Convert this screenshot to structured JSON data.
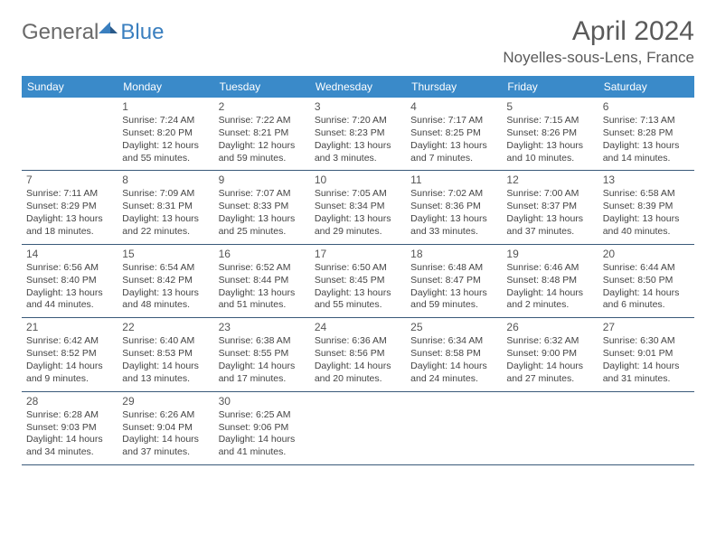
{
  "logo": {
    "text1": "General",
    "text2": "Blue"
  },
  "title": "April 2024",
  "location": "Noyelles-sous-Lens, France",
  "colors": {
    "header_bg": "#3a8ac9",
    "header_text": "#ffffff",
    "row_border": "#3a5a7a",
    "text": "#444444",
    "title": "#5a5a5a",
    "logo_gray": "#6a6a6a",
    "logo_blue": "#3a7fbf"
  },
  "weekdays": [
    "Sunday",
    "Monday",
    "Tuesday",
    "Wednesday",
    "Thursday",
    "Friday",
    "Saturday"
  ],
  "weeks": [
    [
      null,
      {
        "n": "1",
        "sr": "7:24 AM",
        "ss": "8:20 PM",
        "dl": "12 hours and 55 minutes."
      },
      {
        "n": "2",
        "sr": "7:22 AM",
        "ss": "8:21 PM",
        "dl": "12 hours and 59 minutes."
      },
      {
        "n": "3",
        "sr": "7:20 AM",
        "ss": "8:23 PM",
        "dl": "13 hours and 3 minutes."
      },
      {
        "n": "4",
        "sr": "7:17 AM",
        "ss": "8:25 PM",
        "dl": "13 hours and 7 minutes."
      },
      {
        "n": "5",
        "sr": "7:15 AM",
        "ss": "8:26 PM",
        "dl": "13 hours and 10 minutes."
      },
      {
        "n": "6",
        "sr": "7:13 AM",
        "ss": "8:28 PM",
        "dl": "13 hours and 14 minutes."
      }
    ],
    [
      {
        "n": "7",
        "sr": "7:11 AM",
        "ss": "8:29 PM",
        "dl": "13 hours and 18 minutes."
      },
      {
        "n": "8",
        "sr": "7:09 AM",
        "ss": "8:31 PM",
        "dl": "13 hours and 22 minutes."
      },
      {
        "n": "9",
        "sr": "7:07 AM",
        "ss": "8:33 PM",
        "dl": "13 hours and 25 minutes."
      },
      {
        "n": "10",
        "sr": "7:05 AM",
        "ss": "8:34 PM",
        "dl": "13 hours and 29 minutes."
      },
      {
        "n": "11",
        "sr": "7:02 AM",
        "ss": "8:36 PM",
        "dl": "13 hours and 33 minutes."
      },
      {
        "n": "12",
        "sr": "7:00 AM",
        "ss": "8:37 PM",
        "dl": "13 hours and 37 minutes."
      },
      {
        "n": "13",
        "sr": "6:58 AM",
        "ss": "8:39 PM",
        "dl": "13 hours and 40 minutes."
      }
    ],
    [
      {
        "n": "14",
        "sr": "6:56 AM",
        "ss": "8:40 PM",
        "dl": "13 hours and 44 minutes."
      },
      {
        "n": "15",
        "sr": "6:54 AM",
        "ss": "8:42 PM",
        "dl": "13 hours and 48 minutes."
      },
      {
        "n": "16",
        "sr": "6:52 AM",
        "ss": "8:44 PM",
        "dl": "13 hours and 51 minutes."
      },
      {
        "n": "17",
        "sr": "6:50 AM",
        "ss": "8:45 PM",
        "dl": "13 hours and 55 minutes."
      },
      {
        "n": "18",
        "sr": "6:48 AM",
        "ss": "8:47 PM",
        "dl": "13 hours and 59 minutes."
      },
      {
        "n": "19",
        "sr": "6:46 AM",
        "ss": "8:48 PM",
        "dl": "14 hours and 2 minutes."
      },
      {
        "n": "20",
        "sr": "6:44 AM",
        "ss": "8:50 PM",
        "dl": "14 hours and 6 minutes."
      }
    ],
    [
      {
        "n": "21",
        "sr": "6:42 AM",
        "ss": "8:52 PM",
        "dl": "14 hours and 9 minutes."
      },
      {
        "n": "22",
        "sr": "6:40 AM",
        "ss": "8:53 PM",
        "dl": "14 hours and 13 minutes."
      },
      {
        "n": "23",
        "sr": "6:38 AM",
        "ss": "8:55 PM",
        "dl": "14 hours and 17 minutes."
      },
      {
        "n": "24",
        "sr": "6:36 AM",
        "ss": "8:56 PM",
        "dl": "14 hours and 20 minutes."
      },
      {
        "n": "25",
        "sr": "6:34 AM",
        "ss": "8:58 PM",
        "dl": "14 hours and 24 minutes."
      },
      {
        "n": "26",
        "sr": "6:32 AM",
        "ss": "9:00 PM",
        "dl": "14 hours and 27 minutes."
      },
      {
        "n": "27",
        "sr": "6:30 AM",
        "ss": "9:01 PM",
        "dl": "14 hours and 31 minutes."
      }
    ],
    [
      {
        "n": "28",
        "sr": "6:28 AM",
        "ss": "9:03 PM",
        "dl": "14 hours and 34 minutes."
      },
      {
        "n": "29",
        "sr": "6:26 AM",
        "ss": "9:04 PM",
        "dl": "14 hours and 37 minutes."
      },
      {
        "n": "30",
        "sr": "6:25 AM",
        "ss": "9:06 PM",
        "dl": "14 hours and 41 minutes."
      },
      null,
      null,
      null,
      null
    ]
  ]
}
